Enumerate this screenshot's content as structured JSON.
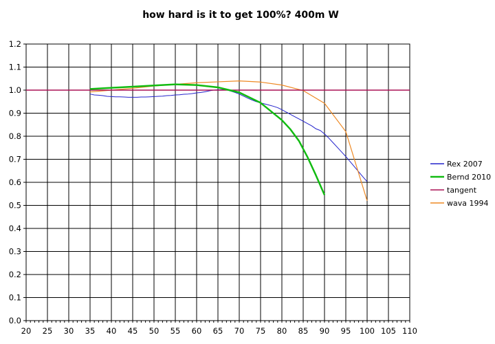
{
  "chart_data": {
    "type": "line",
    "title": "how hard is it to get 100%? 400m W",
    "xlabel": "",
    "ylabel": "",
    "xlim": [
      20,
      110
    ],
    "ylim": [
      0,
      1.2
    ],
    "x_ticks": [
      20,
      25,
      30,
      35,
      40,
      45,
      50,
      55,
      60,
      65,
      70,
      75,
      80,
      85,
      90,
      95,
      100,
      105,
      110
    ],
    "y_ticks": [
      0.0,
      0.1,
      0.2,
      0.3,
      0.4,
      0.5,
      0.6,
      0.7,
      0.8,
      0.9,
      1.0,
      1.1,
      1.2
    ],
    "y_tick_labels": [
      "0.0",
      "0.1",
      "0.2",
      "0.3",
      "0.4",
      "0.5",
      "0.6",
      "0.7",
      "0.8",
      "0.9",
      "1.0",
      "1.1",
      "1.2"
    ],
    "grid": true,
    "legend_position": "right",
    "series": [
      {
        "name": "Rex 2007",
        "color": "#2222cc",
        "x": [
          35,
          36,
          37,
          38,
          39,
          40,
          41,
          42,
          43,
          44,
          45,
          46,
          47,
          48,
          49,
          50,
          51,
          52,
          53,
          54,
          55,
          56,
          57,
          58,
          59,
          60,
          61,
          62,
          63,
          64,
          65,
          66,
          67,
          68,
          69,
          70,
          71,
          72,
          73,
          74,
          75,
          76,
          77,
          78,
          79,
          80,
          81,
          82,
          83,
          84,
          85,
          86,
          87,
          88,
          89,
          90,
          91,
          92,
          93,
          94,
          95,
          96,
          97,
          98,
          99,
          100
        ],
        "y": [
          0.983,
          0.979,
          0.978,
          0.976,
          0.973,
          0.972,
          0.971,
          0.971,
          0.97,
          0.969,
          0.969,
          0.969,
          0.97,
          0.97,
          0.971,
          0.972,
          0.973,
          0.974,
          0.976,
          0.977,
          0.979,
          0.98,
          0.982,
          0.983,
          0.985,
          0.988,
          0.99,
          0.993,
          0.997,
          1.0,
          1.002,
          1.002,
          1.001,
          0.996,
          0.99,
          0.983,
          0.974,
          0.965,
          0.957,
          0.95,
          0.945,
          0.94,
          0.935,
          0.93,
          0.924,
          0.915,
          0.905,
          0.895,
          0.885,
          0.875,
          0.865,
          0.855,
          0.845,
          0.832,
          0.825,
          0.81,
          0.792,
          0.772,
          0.752,
          0.732,
          0.712,
          0.69,
          0.668,
          0.646,
          0.624,
          0.603
        ]
      },
      {
        "name": "Bernd 2010",
        "color": "#11bb11",
        "x": [
          35,
          40,
          45,
          50,
          55,
          60,
          65,
          70,
          75,
          80,
          82,
          84,
          86,
          88,
          90
        ],
        "y": [
          1.005,
          1.01,
          1.015,
          1.02,
          1.025,
          1.022,
          1.012,
          0.99,
          0.945,
          0.87,
          0.83,
          0.78,
          0.71,
          0.63,
          0.545
        ]
      },
      {
        "name": "tangent",
        "color": "#aa1155",
        "x": [
          20,
          110
        ],
        "y": [
          1.0,
          1.0
        ]
      },
      {
        "name": "wava 1994",
        "color": "#ee8822",
        "x": [
          35,
          40,
          45,
          50,
          55,
          60,
          65,
          70,
          75,
          80,
          85,
          90,
          95,
          100
        ],
        "y": [
          0.992,
          1.0,
          1.008,
          1.018,
          1.025,
          1.032,
          1.036,
          1.04,
          1.035,
          1.022,
          0.998,
          0.943,
          0.82,
          0.52
        ]
      }
    ]
  }
}
